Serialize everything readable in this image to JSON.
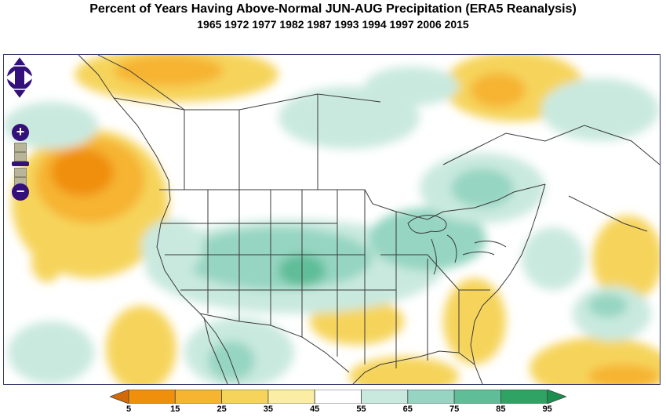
{
  "title": "Percent of Years Having Above-Normal JUN-AUG Precipitation (ERA5 Reanalysis)",
  "subtitle": "1965 1972 1977 1982 1987 1993 1994 1997 2006 2015",
  "controls": {
    "pan_up": "pan-up-icon",
    "pan_down": "pan-down-icon",
    "pan_left": "pan-left-icon",
    "pan_right": "pan-right-icon",
    "zoom_in_label": "+",
    "zoom_out_label": "−"
  },
  "legend": {
    "ticks": [
      "5",
      "15",
      "25",
      "35",
      "45",
      "55",
      "65",
      "75",
      "85",
      "95"
    ],
    "colors": [
      "#d36a05",
      "#f08f0c",
      "#f6b431",
      "#f6d45c",
      "#fbeea4",
      "#ffffff",
      "#c9e9df",
      "#95d5c1",
      "#5fbd98",
      "#2ea363",
      "#1a8f4e"
    ]
  }
}
